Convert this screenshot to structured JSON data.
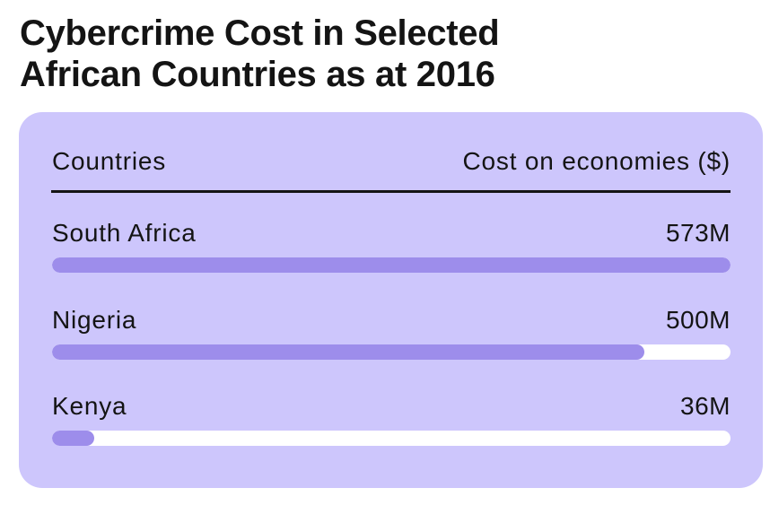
{
  "title_lines": [
    "Cybercrime Cost in Selected",
    "African Countries as at 2016"
  ],
  "colors": {
    "card_background": "#cdc6fc",
    "bar_fill": "#9d8deb",
    "bar_track": "#ffffff",
    "text": "#141414"
  },
  "header": {
    "left": "Countries",
    "right": "Cost on economies ($)"
  },
  "rows": [
    {
      "label": "South Africa",
      "value_text": "573M"
    },
    {
      "label": "Nigeria",
      "value_text": "500M"
    },
    {
      "label": "Kenya",
      "value_text": "36M"
    }
  ],
  "chart_data": {
    "type": "bar",
    "orientation": "horizontal",
    "title": "Cybercrime Cost in Selected African Countries as at 2016",
    "xlabel": "Cost on economies ($)",
    "ylabel": "Countries",
    "categories": [
      "South Africa",
      "Nigeria",
      "Kenya"
    ],
    "values": [
      573,
      500,
      36
    ],
    "unit": "M",
    "xlim": [
      0,
      573
    ],
    "grid": false,
    "legend": "none"
  }
}
